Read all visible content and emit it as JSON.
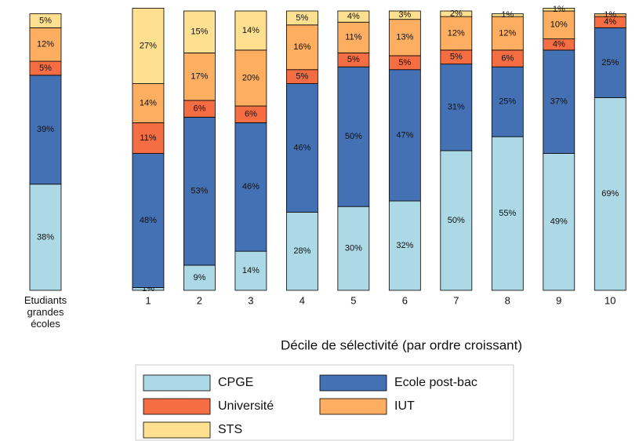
{
  "chart_data": {
    "type": "stacked_bar",
    "xlabel": "Décile de sélectivité (par ordre croissant)",
    "categories": [
      "Etudiants grandes écoles",
      null,
      "1",
      "2",
      "3",
      "4",
      "5",
      "6",
      "7",
      "8",
      "9",
      "10"
    ],
    "ylim": [
      0,
      100
    ],
    "legend": "bottom",
    "series": [
      {
        "name": "CPGE",
        "color": "#add8e6",
        "values": [
          38,
          null,
          1,
          9,
          14,
          28,
          30,
          32,
          50,
          55,
          49,
          69
        ],
        "value_labels": [
          "38%",
          null,
          "1%",
          "9%",
          "14%",
          "28%",
          "30%",
          "32%",
          "50%",
          "55%",
          "49%",
          "69%"
        ]
      },
      {
        "name": "Ecole post-bac",
        "color": "#4470b4",
        "values": [
          39,
          null,
          48,
          53,
          46,
          46,
          50,
          47,
          31,
          25,
          37,
          25
        ],
        "value_labels": [
          "39%",
          null,
          "48%",
          "53%",
          "46%",
          "46%",
          "50%",
          "47%",
          "31%",
          "25%",
          "37%",
          "25%"
        ]
      },
      {
        "name": "Université",
        "color": "#f46d43",
        "values": [
          5,
          null,
          11,
          6,
          6,
          5,
          5,
          5,
          5,
          6,
          4,
          4
        ],
        "value_labels": [
          "5%",
          null,
          "11%",
          "6%",
          "6%",
          "5%",
          "5%",
          "5%",
          "5%",
          "6%",
          "4%",
          "4%"
        ]
      },
      {
        "name": "IUT",
        "color": "#fdae61",
        "values": [
          12,
          null,
          14,
          17,
          20,
          16,
          11,
          13,
          12,
          12,
          10,
          1
        ],
        "value_labels": [
          "12%",
          null,
          "14%",
          "17%",
          "20%",
          "16%",
          "11%",
          "13%",
          "12%",
          "12%",
          "10%",
          "1%"
        ]
      },
      {
        "name": "STS",
        "color": "#fee090",
        "values": [
          5,
          null,
          27,
          15,
          14,
          5,
          4,
          3,
          2,
          1,
          1,
          null
        ],
        "value_labels": [
          "5%",
          null,
          "27%",
          "15%",
          "14%",
          "5%",
          "4%",
          "3%",
          "2%",
          "1%",
          "1%",
          null
        ]
      }
    ]
  }
}
